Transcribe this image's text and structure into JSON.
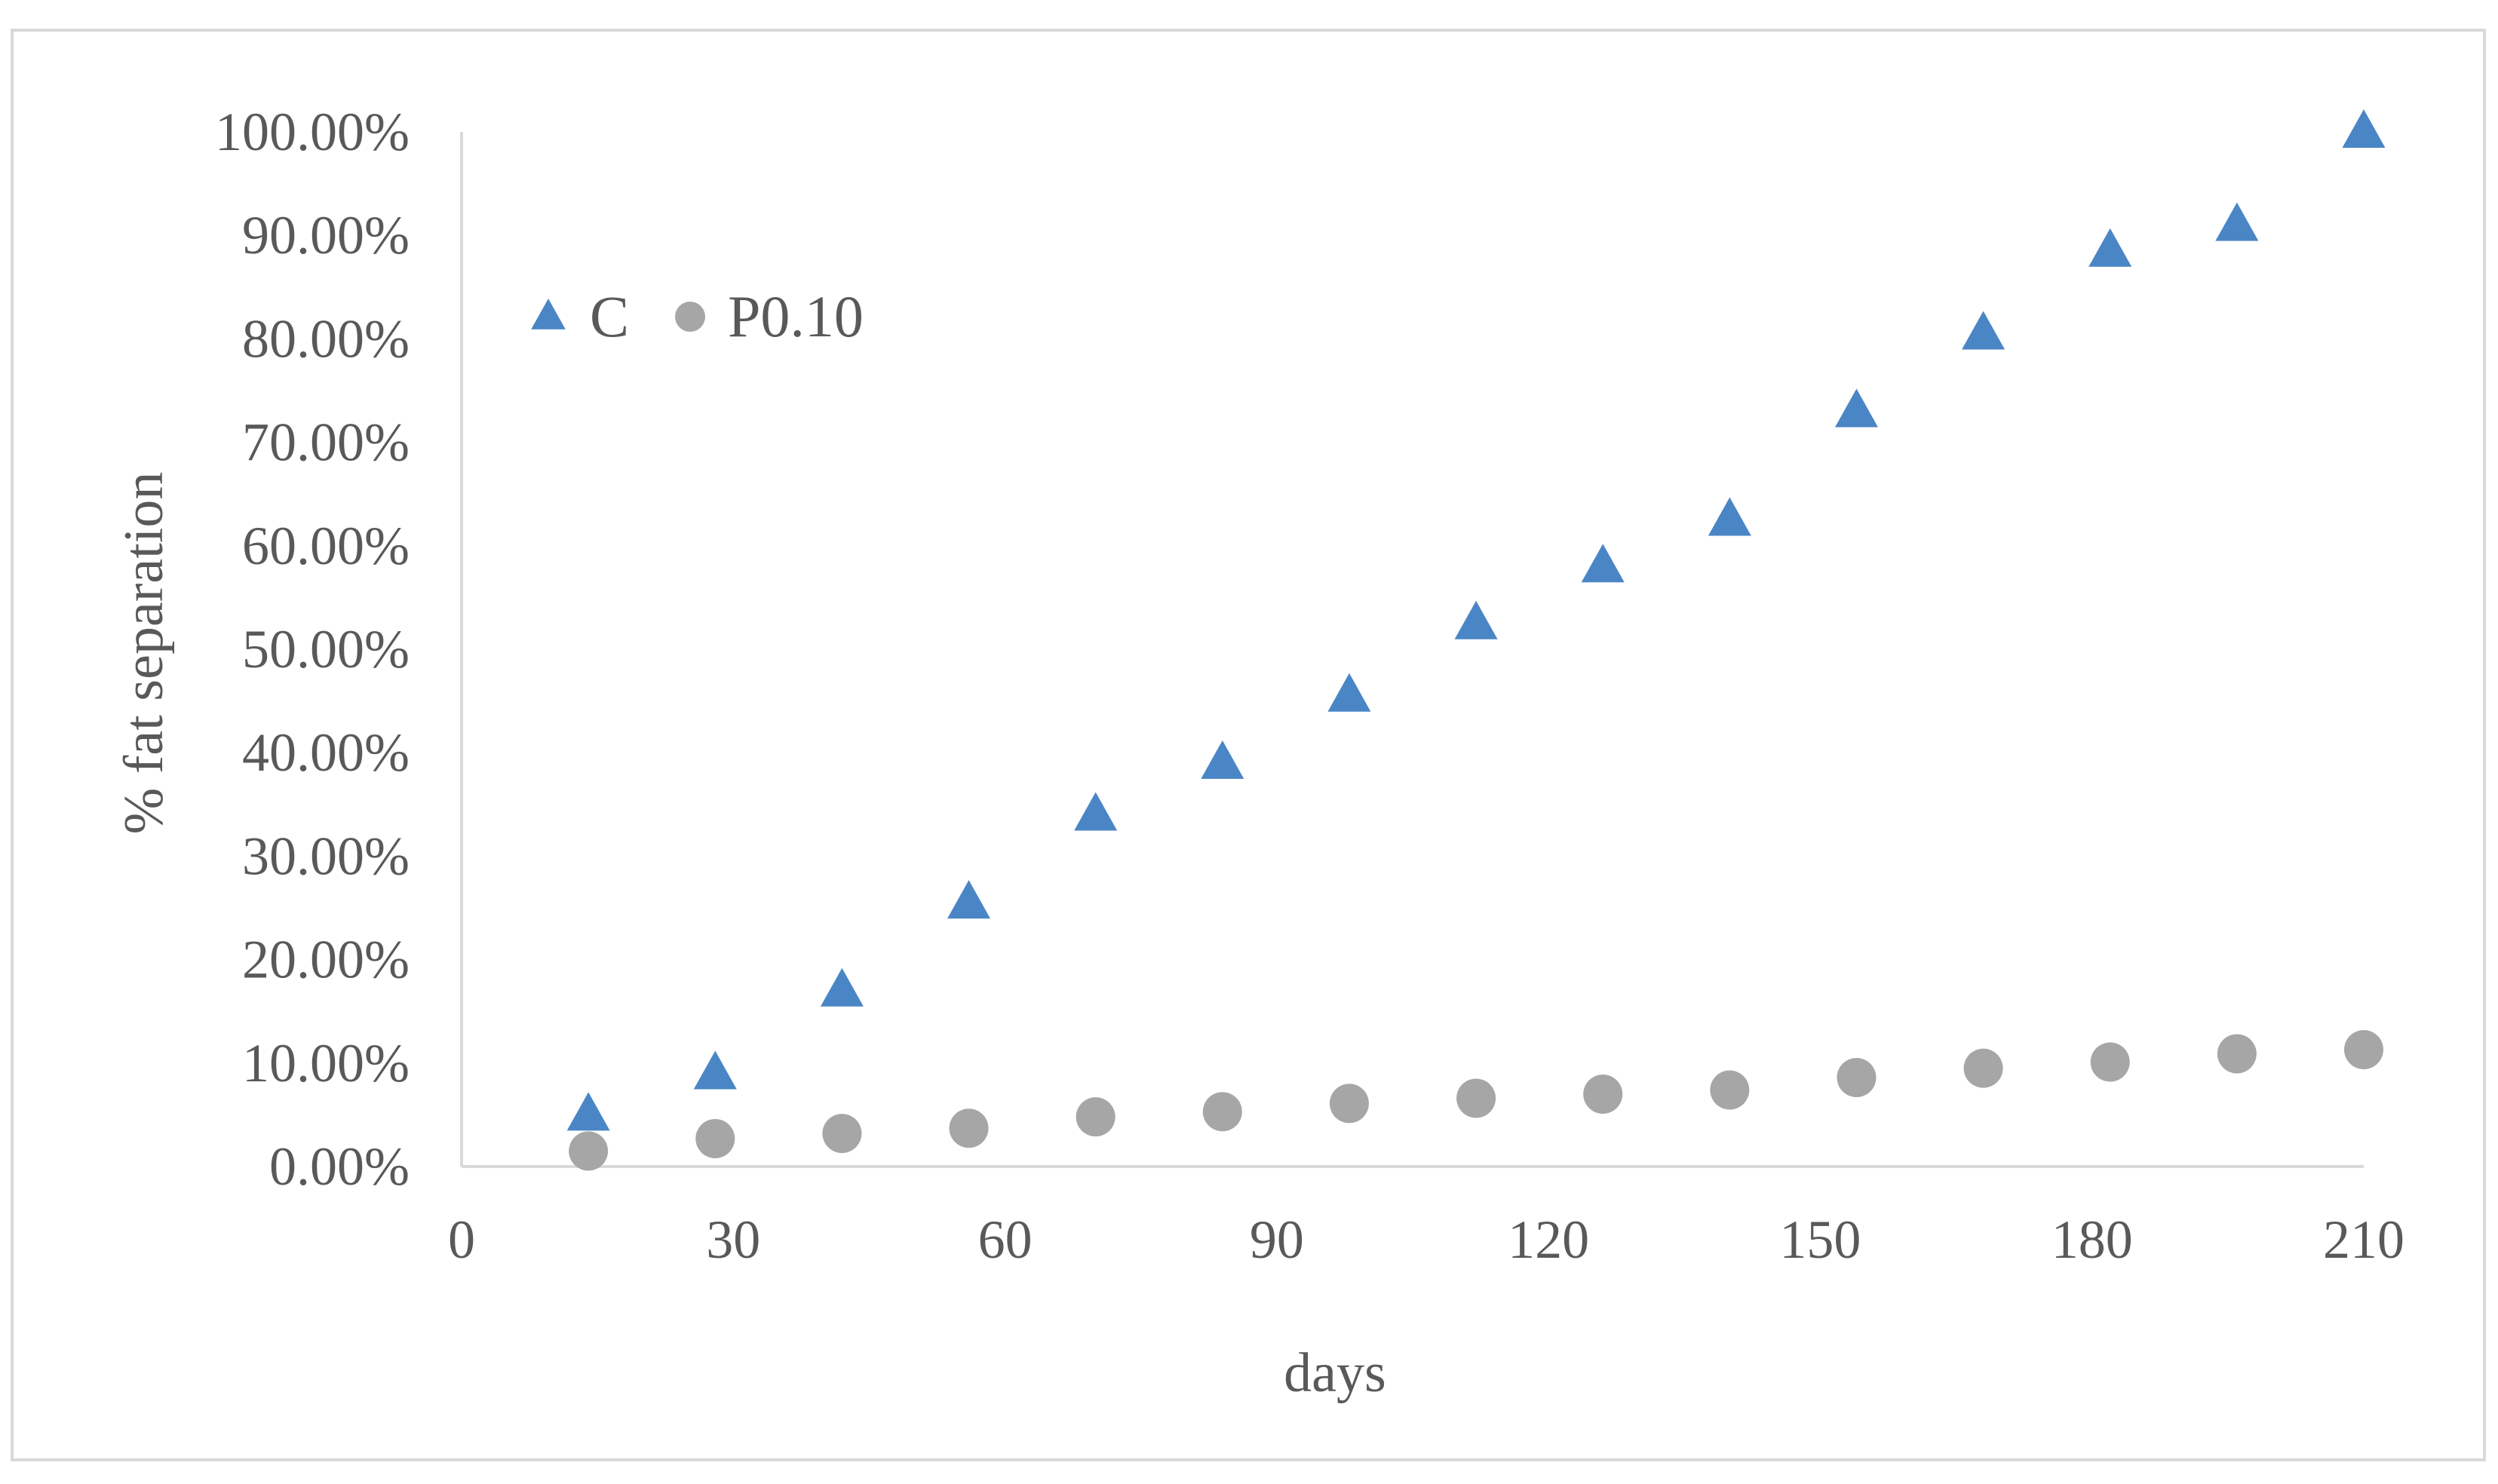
{
  "chart_data": {
    "type": "scatter",
    "title": "",
    "xlabel": "days",
    "ylabel": "% fat separation",
    "xlim": [
      0,
      210
    ],
    "ylim": [
      0,
      1
    ],
    "x_ticks": [
      "0",
      "30",
      "60",
      "90",
      "120",
      "150",
      "180",
      "210"
    ],
    "y_ticks": [
      "0.00%",
      "10.00%",
      "20.00%",
      "30.00%",
      "40.00%",
      "50.00%",
      "60.00%",
      "70.00%",
      "80.00%",
      "90.00%",
      "100.00%"
    ],
    "grid": false,
    "legend_position": "top-left",
    "series": [
      {
        "name": "C",
        "marker": "triangle",
        "color": "#4a86c5",
        "points": [
          [
            14,
            0.05
          ],
          [
            28,
            0.09
          ],
          [
            42,
            0.17
          ],
          [
            56,
            0.255
          ],
          [
            70,
            0.34
          ],
          [
            84,
            0.39
          ],
          [
            98,
            0.455
          ],
          [
            112,
            0.525
          ],
          [
            126,
            0.58
          ],
          [
            140,
            0.625
          ],
          [
            154,
            0.73
          ],
          [
            168,
            0.805
          ],
          [
            182,
            0.885
          ],
          [
            196,
            0.91
          ],
          [
            210,
            1.0
          ]
        ]
      },
      {
        "name": "P0.10",
        "marker": "circle",
        "color": "#a6a6a6",
        "points": [
          [
            14,
            0.015
          ],
          [
            28,
            0.027
          ],
          [
            42,
            0.032
          ],
          [
            56,
            0.037
          ],
          [
            70,
            0.048
          ],
          [
            84,
            0.053
          ],
          [
            98,
            0.061
          ],
          [
            112,
            0.066
          ],
          [
            126,
            0.07
          ],
          [
            140,
            0.074
          ],
          [
            154,
            0.086
          ],
          [
            168,
            0.095
          ],
          [
            182,
            0.101
          ],
          [
            196,
            0.109
          ],
          [
            210,
            0.113
          ]
        ]
      }
    ]
  }
}
